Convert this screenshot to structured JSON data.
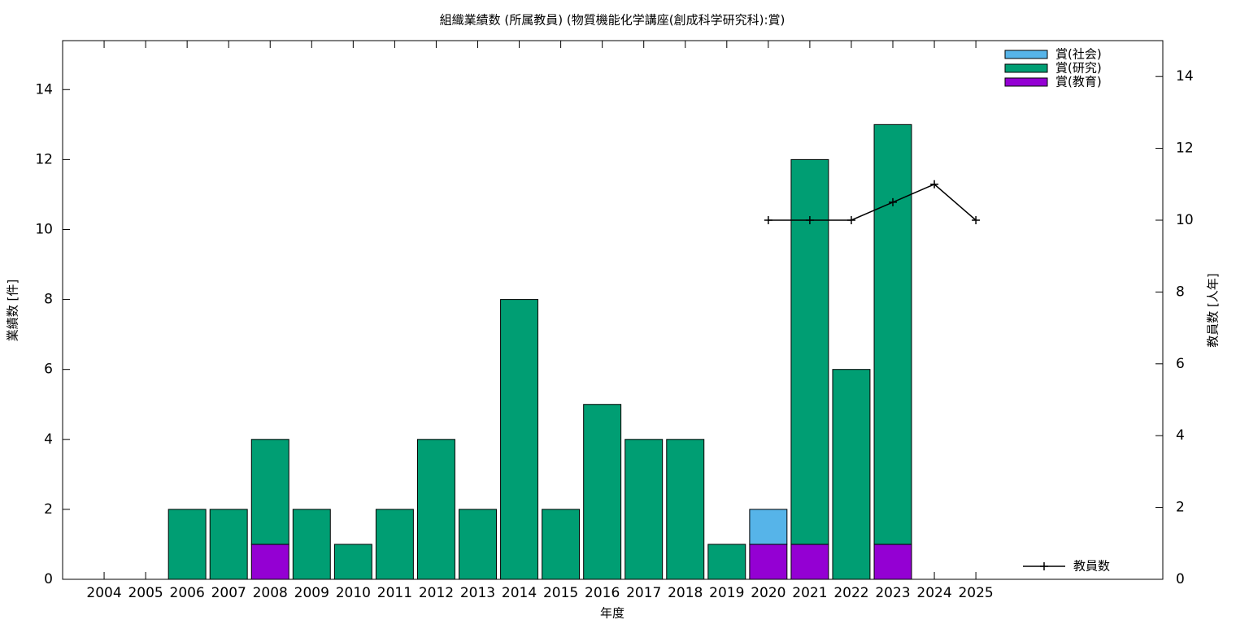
{
  "chart_data": {
    "type": "bar",
    "stacked": true,
    "title": "組織業績数 (所属教員) (物質機能化学講座(創成科学研究科):賞)",
    "xlabel": "年度",
    "ylabel": "業績数 [件]",
    "y2label": "教員数 [人年]",
    "categories": [
      "2004",
      "2005",
      "2006",
      "2007",
      "2008",
      "2009",
      "2010",
      "2011",
      "2012",
      "2013",
      "2014",
      "2015",
      "2016",
      "2017",
      "2018",
      "2019",
      "2020",
      "2021",
      "2022",
      "2023",
      "2024",
      "2025"
    ],
    "series": [
      {
        "name": "賞(社会)",
        "color": "#56b4e9",
        "values": [
          0,
          0,
          0,
          0,
          0,
          0,
          0,
          0,
          0,
          0,
          0,
          0,
          0,
          0,
          0,
          0,
          1,
          0,
          0,
          0,
          0,
          0
        ]
      },
      {
        "name": "賞(研究)",
        "color": "#009e73",
        "values": [
          0,
          0,
          2,
          2,
          3,
          2,
          1,
          2,
          4,
          2,
          8,
          2,
          5,
          4,
          4,
          1,
          0,
          11,
          6,
          12,
          0,
          0
        ]
      },
      {
        "name": "賞(教育)",
        "color": "#9400d3",
        "values": [
          0,
          0,
          0,
          0,
          1,
          0,
          0,
          0,
          0,
          0,
          0,
          0,
          0,
          0,
          0,
          0,
          1,
          1,
          0,
          1,
          0,
          0
        ]
      },
      {
        "name": "教員数",
        "type": "line",
        "axis": "y2",
        "color": "#000000",
        "values": [
          null,
          null,
          null,
          null,
          null,
          null,
          null,
          null,
          null,
          null,
          null,
          null,
          null,
          null,
          null,
          null,
          10,
          10,
          10,
          10.5,
          11,
          10
        ]
      }
    ],
    "ylim": [
      0,
      15.4
    ],
    "yticks": [
      0,
      2,
      4,
      6,
      8,
      10,
      12,
      14
    ],
    "y2lim": [
      0,
      15
    ],
    "y2ticks": [
      0,
      2,
      4,
      6,
      8,
      10,
      12,
      14
    ],
    "grid": false,
    "legend": "top-right"
  }
}
